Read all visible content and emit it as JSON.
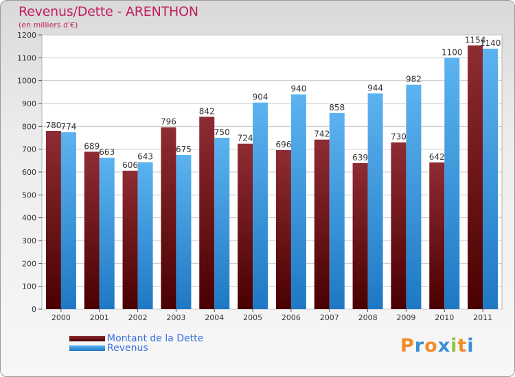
{
  "title": "Revenus/Dette - ARENTHON",
  "subtitle": "(en milliers d'€)",
  "logo_text": "Proxiti",
  "colors": {
    "title": "#c01f60",
    "dette": "#7a1f26",
    "revenus": "#4aa3e6",
    "legend_text": "#3a6fe0"
  },
  "chart_data": {
    "type": "bar",
    "title": "Revenus/Dette - ARENTHON",
    "subtitle": "(en milliers d'€)",
    "xlabel": "",
    "ylabel": "",
    "ylim": [
      0,
      1200
    ],
    "yticks": [
      0,
      100,
      200,
      300,
      400,
      500,
      600,
      700,
      800,
      900,
      1000,
      1100,
      1200
    ],
    "grid": true,
    "legend_position": "bottom-left",
    "categories": [
      "2000",
      "2001",
      "2002",
      "2003",
      "2004",
      "2005",
      "2006",
      "2007",
      "2008",
      "2009",
      "2010",
      "2011"
    ],
    "series": [
      {
        "name": "Montant de la Dette",
        "color": "#7a1f26",
        "values": [
          780,
          689,
          606,
          796,
          842,
          724,
          696,
          742,
          639,
          730,
          642,
          1154
        ]
      },
      {
        "name": "Revenus",
        "color": "#4aa3e6",
        "values": [
          774,
          663,
          643,
          675,
          750,
          904,
          940,
          858,
          944,
          982,
          1100,
          1140
        ]
      }
    ]
  }
}
